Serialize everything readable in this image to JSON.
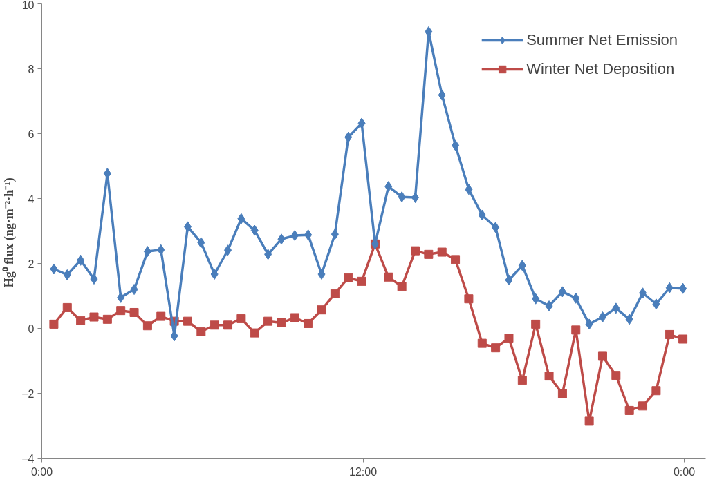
{
  "chart_data": {
    "type": "line",
    "ylabel": "Hg⁰  flux (ng·m⁻²·h⁻¹)",
    "x": [
      0.45,
      0.95,
      1.45,
      1.95,
      2.45,
      2.95,
      3.45,
      3.95,
      4.45,
      4.95,
      5.45,
      5.95,
      6.45,
      6.95,
      7.45,
      7.95,
      8.45,
      8.95,
      9.45,
      9.95,
      10.45,
      10.95,
      11.45,
      11.95,
      12.45,
      12.95,
      13.45,
      13.95,
      14.45,
      14.95,
      15.45,
      15.95,
      16.45,
      16.95,
      17.45,
      17.95,
      18.45,
      18.95,
      19.45,
      19.95,
      20.45,
      20.95,
      21.45,
      21.95,
      22.45,
      22.95,
      23.45,
      23.95
    ],
    "series": [
      {
        "name": "Summer Net Emission",
        "color": "#4a7ebb",
        "marker": "diamond",
        "values": [
          1.83,
          1.65,
          2.1,
          1.52,
          4.77,
          0.95,
          1.2,
          2.37,
          2.42,
          -0.23,
          3.13,
          2.64,
          1.67,
          2.41,
          3.38,
          3.02,
          2.28,
          2.75,
          2.86,
          2.88,
          1.67,
          2.9,
          5.89,
          6.32,
          2.6,
          4.37,
          4.05,
          4.03,
          9.14,
          7.19,
          5.64,
          4.28,
          3.49,
          3.11,
          1.49,
          1.94,
          0.91,
          0.69,
          1.13,
          0.93,
          0.13,
          0.35,
          0.62,
          0.28,
          1.09,
          0.75,
          1.25,
          1.23
        ]
      },
      {
        "name": "Winter Net Deposition",
        "color": "#be4b48",
        "marker": "square",
        "values": [
          0.13,
          0.64,
          0.24,
          0.35,
          0.28,
          0.55,
          0.49,
          0.08,
          0.37,
          0.22,
          0.22,
          -0.1,
          0.1,
          0.1,
          0.3,
          -0.14,
          0.22,
          0.17,
          0.33,
          0.15,
          0.57,
          1.07,
          1.56,
          1.45,
          2.6,
          1.58,
          1.29,
          2.39,
          2.28,
          2.35,
          2.12,
          0.91,
          -0.46,
          -0.6,
          -0.3,
          -1.6,
          0.13,
          -1.47,
          -2.01,
          -0.05,
          -2.86,
          -0.86,
          -1.45,
          -2.53,
          -2.39,
          -1.92,
          -0.19,
          -0.33
        ]
      }
    ],
    "xlim": [
      0,
      24.8
    ],
    "xticks": [
      {
        "value": 0,
        "label": "0:00"
      },
      {
        "value": 12,
        "label": "12:00"
      },
      {
        "value": 24,
        "label": "0:00"
      }
    ],
    "ylim": [
      -4,
      10
    ],
    "yticks": [
      -4,
      -2,
      0,
      2,
      4,
      6,
      8,
      10
    ],
    "grid": false,
    "legend": "top right",
    "line_style": "solid"
  }
}
